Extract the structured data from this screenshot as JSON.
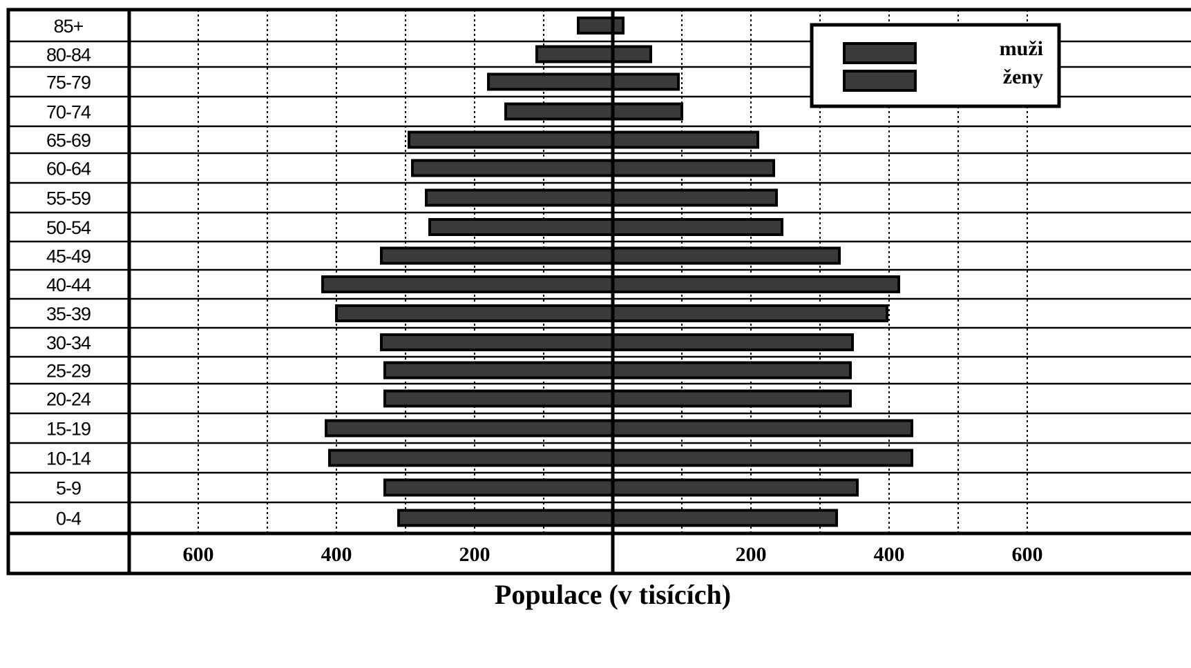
{
  "chart_data": {
    "type": "bar",
    "orientation": "horizontal-population-pyramid",
    "categories": [
      "85+",
      "80-84",
      "75-79",
      "70-74",
      "65-69",
      "60-64",
      "55-59",
      "50-54",
      "45-49",
      "40-44",
      "35-39",
      "30-34",
      "25-29",
      "20-24",
      "15-19",
      "10-14",
      "5-9",
      "0-4"
    ],
    "series": [
      {
        "name": "muži",
        "side": "left",
        "values": [
          50,
          110,
          180,
          155,
          295,
          290,
          270,
          265,
          335,
          420,
          400,
          335,
          330,
          330,
          415,
          410,
          330,
          310
        ]
      },
      {
        "name": "ženy",
        "side": "right",
        "values": [
          15,
          55,
          95,
          100,
          210,
          233,
          237,
          245,
          328,
          414,
          397,
          347,
          344,
          344,
          433,
          433,
          354,
          324
        ]
      }
    ],
    "xlabel": "Populace (v tisících)",
    "x_ticks_left": [
      "600",
      "400",
      "200"
    ],
    "x_ticks_right": [
      "200",
      "400",
      "600"
    ],
    "xlim": [
      0,
      700
    ],
    "gridlines": "dotted-vertical-every-100",
    "legend_position": "top-right",
    "colors": {
      "bar_fill": "#3a3a3a",
      "bar_outline": "#000000"
    }
  }
}
